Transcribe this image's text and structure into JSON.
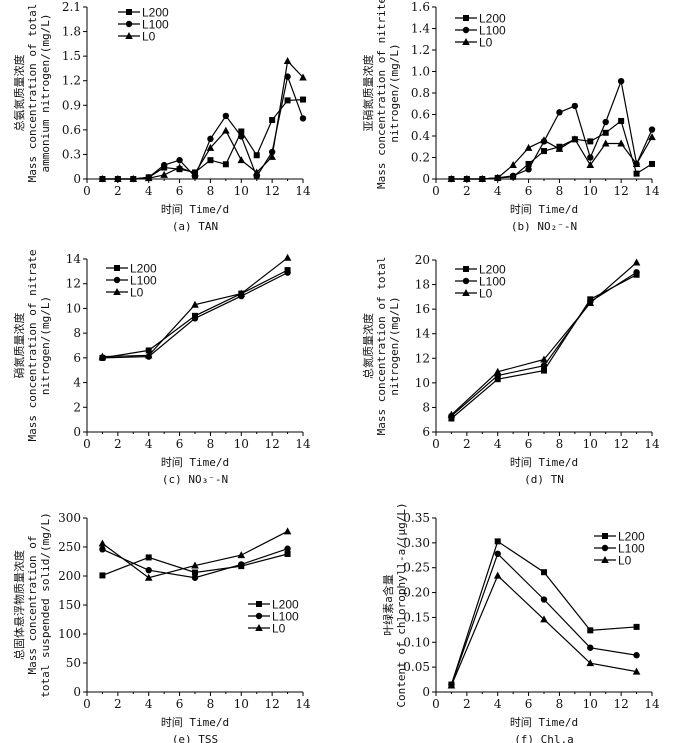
{
  "chart_data": [
    {
      "id": "a",
      "type": "line",
      "caption": "(a) TAN",
      "xlabel": "时间 Time/d",
      "ylabel": [
        "总氨氮质量浓度",
        "Mass concentration of total",
        "ammonium nitrogen/(mg/L)"
      ],
      "xlim": [
        0,
        14
      ],
      "ylim": [
        0,
        2.1
      ],
      "xticks": [
        "0",
        "2",
        "4",
        "6",
        "8",
        "10",
        "12",
        "14"
      ],
      "yticks": [
        "0",
        "0.3",
        "0.6",
        "0.9",
        "1.2",
        "1.5",
        "1.8",
        "2.1"
      ],
      "legend_position": "top-center",
      "x": [
        1,
        2,
        3,
        4,
        5,
        6,
        7,
        8,
        9,
        10,
        11,
        12,
        13,
        14
      ],
      "series": [
        {
          "name": "L200",
          "marker": "square",
          "values": [
            0,
            0,
            0,
            0.02,
            0.14,
            0.12,
            0.08,
            0.23,
            0.18,
            0.58,
            0.29,
            0.72,
            0.96,
            0.97
          ]
        },
        {
          "name": "L100",
          "marker": "circle",
          "values": [
            0,
            0,
            0,
            0.02,
            0.17,
            0.23,
            0.03,
            0.49,
            0.77,
            0.52,
            0.03,
            0.33,
            1.25,
            0.74
          ]
        },
        {
          "name": "L0",
          "marker": "triangle",
          "values": [
            0,
            0,
            0,
            0.01,
            0.05,
            0.14,
            0.07,
            0.38,
            0.59,
            0.23,
            0.08,
            0.27,
            1.44,
            1.24
          ]
        }
      ]
    },
    {
      "id": "b",
      "type": "line",
      "caption": "(b) NO₂⁻-N",
      "xlabel": "时间 Time/d",
      "ylabel": [
        "亚硝氮质量浓度",
        "Mass concentration of nitrite",
        "nitrogen/(mg/L)"
      ],
      "xlim": [
        0,
        14
      ],
      "ylim": [
        0,
        1.6
      ],
      "xticks": [
        "0",
        "2",
        "4",
        "6",
        "8",
        "10",
        "12",
        "14"
      ],
      "yticks": [
        "0",
        "0.2",
        "0.4",
        "0.6",
        "0.8",
        "1.0",
        "1.2",
        "1.4",
        "1.6"
      ],
      "legend_position": "top-left",
      "x": [
        1,
        2,
        3,
        4,
        5,
        6,
        7,
        8,
        9,
        10,
        11,
        12,
        13,
        14
      ],
      "series": [
        {
          "name": "L200",
          "marker": "square",
          "values": [
            0,
            0,
            0,
            0.01,
            0.02,
            0.14,
            0.26,
            0.3,
            0.37,
            0.35,
            0.43,
            0.54,
            0.05,
            0.14
          ]
        },
        {
          "name": "L100",
          "marker": "circle",
          "values": [
            0,
            0,
            0,
            0.01,
            0.03,
            0.09,
            0.35,
            0.62,
            0.68,
            0.2,
            0.53,
            0.91,
            0.14,
            0.46
          ]
        },
        {
          "name": "L0",
          "marker": "triangle",
          "values": [
            0,
            0,
            0,
            0.01,
            0.13,
            0.29,
            0.36,
            0.28,
            0.37,
            0.13,
            0.33,
            0.33,
            0.14,
            0.39
          ]
        }
      ]
    },
    {
      "id": "c",
      "type": "line",
      "caption": "(c) NO₃⁻-N",
      "xlabel": "时间 Time/d",
      "ylabel": [
        "硝氮质量浓度",
        "Mass concentration of nitrate",
        "nitrogen/(mg/L)"
      ],
      "xlim": [
        0,
        14
      ],
      "ylim": [
        0,
        14
      ],
      "xticks": [
        "0",
        "2",
        "4",
        "6",
        "8",
        "10",
        "12",
        "14"
      ],
      "yticks": [
        "0",
        "2",
        "4",
        "6",
        "8",
        "10",
        "12",
        "14"
      ],
      "legend_position": "top-left",
      "x": [
        1,
        4,
        7,
        10,
        13
      ],
      "series": [
        {
          "name": "L200",
          "marker": "square",
          "values": [
            6.0,
            6.6,
            9.4,
            11.2,
            13.1
          ]
        },
        {
          "name": "L100",
          "marker": "circle",
          "values": [
            6.0,
            6.1,
            9.2,
            11.0,
            12.9
          ]
        },
        {
          "name": "L0",
          "marker": "triangle",
          "values": [
            6.1,
            6.2,
            10.3,
            11.2,
            14.1
          ]
        }
      ]
    },
    {
      "id": "d",
      "type": "line",
      "caption": "(d) TN",
      "xlabel": "时间 Time/d",
      "ylabel": [
        "总氮质量浓度",
        "Mass concentration of total",
        "nitrogen/(mg/L)"
      ],
      "xlim": [
        0,
        14
      ],
      "ylim": [
        6,
        20
      ],
      "xticks": [
        "0",
        "2",
        "4",
        "6",
        "8",
        "10",
        "12",
        "14"
      ],
      "yticks": [
        "6",
        "8",
        "10",
        "12",
        "14",
        "16",
        "18",
        "20"
      ],
      "legend_position": "top-left",
      "x": [
        1,
        4,
        7,
        10,
        13
      ],
      "series": [
        {
          "name": "L200",
          "marker": "square",
          "values": [
            7.1,
            10.3,
            11.0,
            16.8,
            18.8
          ]
        },
        {
          "name": "L100",
          "marker": "circle",
          "values": [
            7.3,
            10.6,
            11.4,
            16.6,
            19.0
          ]
        },
        {
          "name": "L0",
          "marker": "triangle",
          "values": [
            7.4,
            10.9,
            11.9,
            16.5,
            19.8
          ]
        }
      ]
    },
    {
      "id": "e",
      "type": "line",
      "caption": "(e) TSS",
      "xlabel": "时间 Time/d",
      "ylabel": [
        "总固体悬浮物质量浓度",
        "Mass concentration of",
        "total suspended solid/(mg/L)"
      ],
      "xlim": [
        0,
        14
      ],
      "ylim": [
        0,
        300
      ],
      "xticks": [
        "0",
        "2",
        "4",
        "6",
        "8",
        "10",
        "12",
        "14"
      ],
      "yticks": [
        "0",
        "50",
        "100",
        "150",
        "200",
        "250",
        "300"
      ],
      "legend_position": "right-middle",
      "x": [
        1,
        4,
        7,
        10,
        13
      ],
      "series": [
        {
          "name": "L200",
          "marker": "square",
          "values": [
            201,
            232,
            206,
            217,
            238
          ]
        },
        {
          "name": "L100",
          "marker": "circle",
          "values": [
            246,
            210,
            197,
            220,
            247
          ]
        },
        {
          "name": "L0",
          "marker": "triangle",
          "values": [
            256,
            197,
            218,
            236,
            277
          ]
        }
      ]
    },
    {
      "id": "f",
      "type": "line",
      "caption": "(f) Chl.a",
      "xlabel": "时间 Time/d",
      "ylabel": [
        "叶绿素a含量",
        "Content of chlorophyll-a/(μg/L)"
      ],
      "xlim": [
        0,
        14
      ],
      "ylim": [
        0,
        0.35
      ],
      "xticks": [
        "0",
        "2",
        "4",
        "6",
        "8",
        "10",
        "12",
        "14"
      ],
      "yticks": [
        "0",
        "0.05",
        "0.10",
        "0.15",
        "0.20",
        "0.25",
        "0.30",
        "0.35"
      ],
      "legend_position": "top-right",
      "x": [
        1,
        4,
        7,
        10,
        13
      ],
      "series": [
        {
          "name": "L200",
          "marker": "square",
          "values": [
            0.015,
            0.303,
            0.241,
            0.124,
            0.131
          ]
        },
        {
          "name": "L100",
          "marker": "circle",
          "values": [
            0.015,
            0.278,
            0.186,
            0.089,
            0.074
          ]
        },
        {
          "name": "L0",
          "marker": "triangle",
          "values": [
            0.013,
            0.234,
            0.146,
            0.058,
            0.041
          ]
        }
      ]
    }
  ]
}
